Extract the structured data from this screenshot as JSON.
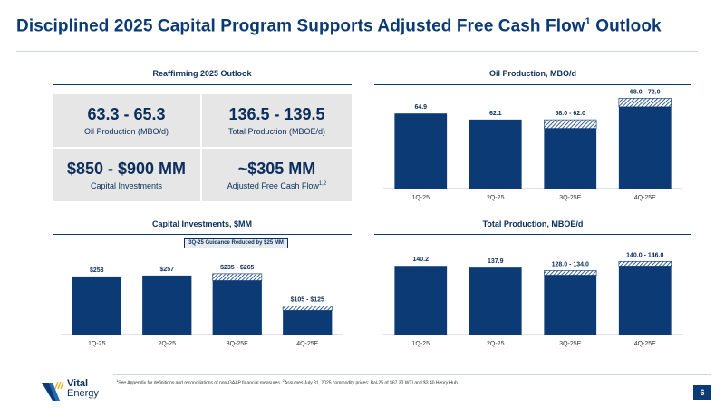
{
  "title": {
    "main": "Disciplined 2025 Capital Program Supports Adjusted Free Cash Flow",
    "sup": "1",
    "tail": " Outlook"
  },
  "outlook": {
    "heading": "Reaffirming 2025 Outlook",
    "cells": [
      {
        "value": "63.3 - 65.3",
        "label": "Oil Production (MBO/d)"
      },
      {
        "value": "136.5 - 139.5",
        "label": "Total Production (MBOE/d)"
      },
      {
        "value": "$850 - $900 MM",
        "label": "Capital Investments"
      },
      {
        "value": "~$305 MM",
        "label": "Adjusted Free Cash Flow",
        "sup": "1,2"
      }
    ]
  },
  "callout": "3Q-25 Guidance Reduced by $25 MM",
  "colors": {
    "bar": "#0b3a75",
    "hatch_bg": "#ffffff",
    "text": "#0b2e5c"
  },
  "chart_data": [
    {
      "id": "oil",
      "type": "bar",
      "title": "Oil Production, MBO/d",
      "categories": [
        "1Q-25",
        "2Q-25",
        "3Q-25E",
        "4Q-25E"
      ],
      "low": [
        64.9,
        62.1,
        58.0,
        68.0
      ],
      "high": [
        64.9,
        62.1,
        62.0,
        72.0
      ],
      "labels": [
        "64.9",
        "62.1",
        "58.0 - 62.0",
        "68.0 - 72.0"
      ],
      "ylim": [
        30,
        73
      ]
    },
    {
      "id": "capex",
      "type": "bar",
      "title": "Capital Investments, $MM",
      "categories": [
        "1Q-25",
        "2Q-25",
        "3Q-25E",
        "4Q-25E"
      ],
      "low": [
        253,
        257,
        235,
        105
      ],
      "high": [
        253,
        257,
        265,
        125
      ],
      "labels": [
        "$253",
        "$257",
        "$235 - $265",
        "$105 - $125"
      ],
      "ylim": [
        0,
        300
      ]
    },
    {
      "id": "total",
      "type": "bar",
      "title": "Total Production, MBOE/d",
      "categories": [
        "1Q-25",
        "2Q-25",
        "3Q-25E",
        "4Q-25E"
      ],
      "low": [
        140.2,
        137.9,
        128.0,
        140.0
      ],
      "high": [
        140.2,
        137.9,
        134.0,
        146.0
      ],
      "labels": [
        "140.2",
        "137.9",
        "128.0 - 134.0",
        "140.0 - 146.0"
      ],
      "ylim": [
        50,
        150
      ]
    }
  ],
  "footnote": {
    "sup1": "1",
    "text1": "See Appendix for definitions and reconciliations of non-GAAP financial measures. ",
    "sup2": "2",
    "text2": "Assumes July 31, 2025 commodity prices: Bal-25 of $67.30 WTI and $3.40 Henry Hub."
  },
  "logo": {
    "line1": "Vital",
    "line2": "Energy"
  },
  "page_number": "6"
}
